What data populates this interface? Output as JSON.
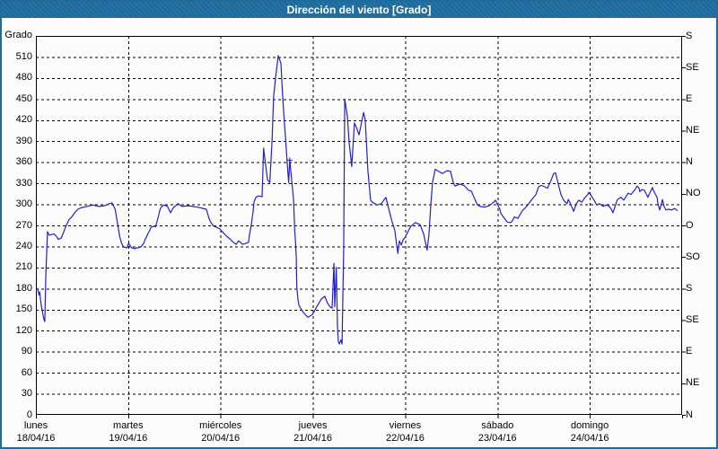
{
  "window": {
    "title": "Dirección del viento [Grado]"
  },
  "colors": {
    "titlebar": "#1e6c9e",
    "window_border": "#1e6c9e",
    "line": "#2222c2",
    "grid": "#000000",
    "axis": "#000000",
    "background": "#fcfcfd",
    "text": "#000000"
  },
  "chart_data": {
    "type": "line",
    "title": "Dirección del viento [Grado]",
    "ylabel_left": "Grado",
    "ylim": [
      0,
      540
    ],
    "xlim_hours": [
      0,
      168
    ],
    "grid": true,
    "legend": "none",
    "y_left_ticks": [
      0,
      30,
      60,
      90,
      120,
      150,
      180,
      210,
      240,
      270,
      300,
      330,
      360,
      390,
      420,
      450,
      480,
      510
    ],
    "y_right_ticks": [
      {
        "value": 540,
        "label": "S"
      },
      {
        "value": 495,
        "label": "SE"
      },
      {
        "value": 450,
        "label": "E"
      },
      {
        "value": 405,
        "label": "NE"
      },
      {
        "value": 360,
        "label": "N"
      },
      {
        "value": 315,
        "label": "NO"
      },
      {
        "value": 270,
        "label": "O"
      },
      {
        "value": 225,
        "label": "SO"
      },
      {
        "value": 180,
        "label": "S"
      },
      {
        "value": 135,
        "label": "SE"
      },
      {
        "value": 90,
        "label": "E"
      },
      {
        "value": 45,
        "label": "NE"
      },
      {
        "value": 0,
        "label": "N"
      }
    ],
    "x_categories": [
      {
        "day": "lunes",
        "date": "18/04/16"
      },
      {
        "day": "martes",
        "date": "19/04/16"
      },
      {
        "day": "miércoles",
        "date": "20/04/16"
      },
      {
        "day": "jueves",
        "date": "21/04/16"
      },
      {
        "day": "viernes",
        "date": "22/04/16"
      },
      {
        "day": "sábado",
        "date": "23/04/16"
      },
      {
        "day": "domingo",
        "date": "24/04/16"
      }
    ],
    "marker_point": [
      66.0,
      363
    ],
    "series": [
      {
        "name": "Dirección del viento",
        "color": "#2222c2",
        "points": [
          [
            0,
            178
          ],
          [
            0.5,
            180
          ],
          [
            0.8,
            171
          ],
          [
            1.0,
            175
          ],
          [
            1.2,
            165
          ],
          [
            1.4,
            156
          ],
          [
            1.6,
            150
          ],
          [
            1.9,
            141
          ],
          [
            2.1,
            136
          ],
          [
            2.3,
            133
          ],
          [
            2.6,
            200
          ],
          [
            3.0,
            261
          ],
          [
            3.5,
            256
          ],
          [
            4.7,
            258
          ],
          [
            5.4,
            254
          ],
          [
            5.8,
            250
          ],
          [
            6.6,
            252
          ],
          [
            7.4,
            263
          ],
          [
            7.8,
            269
          ],
          [
            8.6,
            278
          ],
          [
            9.3,
            282
          ],
          [
            10.1,
            288
          ],
          [
            10.9,
            293
          ],
          [
            11.7,
            295
          ],
          [
            13.2,
            297
          ],
          [
            14.8,
            299
          ],
          [
            16.3,
            297
          ],
          [
            17.9,
            298
          ],
          [
            19.1,
            301
          ],
          [
            19.8,
            302
          ],
          [
            20.6,
            293
          ],
          [
            21.0,
            280
          ],
          [
            21.4,
            267
          ],
          [
            21.8,
            254
          ],
          [
            22.2,
            246
          ],
          [
            22.6,
            241
          ],
          [
            22.9,
            239
          ],
          [
            23.7,
            238
          ],
          [
            24.1,
            245
          ],
          [
            24.5,
            241
          ],
          [
            24.9,
            238
          ],
          [
            25.7,
            237
          ],
          [
            26.4,
            238
          ],
          [
            27.2,
            239
          ],
          [
            28.0,
            244
          ],
          [
            28.4,
            250
          ],
          [
            28.8,
            254
          ],
          [
            29.2,
            259
          ],
          [
            29.6,
            263
          ],
          [
            29.9,
            267
          ],
          [
            30.7,
            269
          ],
          [
            31.1,
            268
          ],
          [
            31.9,
            284
          ],
          [
            32.3,
            293
          ],
          [
            32.7,
            297
          ],
          [
            33.4,
            299
          ],
          [
            34.2,
            297
          ],
          [
            35.0,
            288
          ],
          [
            35.7,
            295
          ],
          [
            36.9,
            301
          ],
          [
            38.0,
            297
          ],
          [
            39.7,
            298
          ],
          [
            42.0,
            296
          ],
          [
            44.3,
            293
          ],
          [
            45.0,
            280
          ],
          [
            45.5,
            274
          ],
          [
            46.2,
            269
          ],
          [
            47.1,
            267
          ],
          [
            47.8,
            265
          ],
          [
            48.3,
            262
          ],
          [
            49.0,
            258
          ],
          [
            49.7,
            254
          ],
          [
            50.6,
            250
          ],
          [
            51.3,
            246
          ],
          [
            52.0,
            243
          ],
          [
            52.7,
            248
          ],
          [
            53.2,
            246
          ],
          [
            53.7,
            243
          ],
          [
            54.4,
            244
          ],
          [
            55.3,
            246
          ],
          [
            55.5,
            256
          ],
          [
            56.0,
            271
          ],
          [
            56.5,
            291
          ],
          [
            56.7,
            303
          ],
          [
            57.2,
            310
          ],
          [
            57.9,
            312
          ],
          [
            58.8,
            311
          ],
          [
            59.2,
            380
          ],
          [
            59.7,
            357
          ],
          [
            60.2,
            335
          ],
          [
            60.8,
            331
          ],
          [
            61.4,
            390
          ],
          [
            61.8,
            454
          ],
          [
            62.3,
            480
          ],
          [
            63.0,
            512
          ],
          [
            63.7,
            501
          ],
          [
            64.2,
            450
          ],
          [
            64.6,
            416
          ],
          [
            64.9,
            395
          ],
          [
            65.3,
            361
          ],
          [
            65.7,
            331
          ],
          [
            66.0,
            363
          ],
          [
            66.4,
            340
          ],
          [
            67.0,
            306
          ],
          [
            67.3,
            262
          ],
          [
            67.5,
            246
          ],
          [
            67.7,
            224
          ],
          [
            67.8,
            184
          ],
          [
            68.1,
            165
          ],
          [
            68.4,
            156
          ],
          [
            69.5,
            146
          ],
          [
            70.7,
            139
          ],
          [
            71.9,
            143
          ],
          [
            72.8,
            152
          ],
          [
            74.2,
            165
          ],
          [
            75.1,
            169
          ],
          [
            75.8,
            159
          ],
          [
            76.5,
            154
          ],
          [
            77.0,
            152
          ],
          [
            77.5,
            216
          ],
          [
            77.7,
            154
          ],
          [
            78.1,
            210
          ],
          [
            78.4,
            127
          ],
          [
            78.6,
            105
          ],
          [
            78.9,
            101
          ],
          [
            79.3,
            107
          ],
          [
            79.6,
            101
          ],
          [
            80.0,
            233
          ],
          [
            80.3,
            450
          ],
          [
            81.0,
            425
          ],
          [
            81.4,
            390
          ],
          [
            82.1,
            354
          ],
          [
            82.8,
            416
          ],
          [
            83.3,
            410
          ],
          [
            84.0,
            399
          ],
          [
            84.5,
            412
          ],
          [
            85.2,
            431
          ],
          [
            85.6,
            421
          ],
          [
            86.3,
            348
          ],
          [
            87.0,
            306
          ],
          [
            87.5,
            303
          ],
          [
            88.7,
            299
          ],
          [
            89.8,
            301
          ],
          [
            91.0,
            310
          ],
          [
            91.7,
            294
          ],
          [
            92.6,
            275
          ],
          [
            93.3,
            263
          ],
          [
            93.8,
            242
          ],
          [
            94.1,
            230
          ],
          [
            94.5,
            248
          ],
          [
            95.0,
            242
          ],
          [
            95.5,
            250
          ],
          [
            95.9,
            252
          ],
          [
            96.8,
            262
          ],
          [
            97.5,
            269
          ],
          [
            98.7,
            274
          ],
          [
            99.9,
            271
          ],
          [
            100.8,
            258
          ],
          [
            101.3,
            245
          ],
          [
            101.7,
            235
          ],
          [
            102.2,
            258
          ],
          [
            102.7,
            301
          ],
          [
            103.1,
            331
          ],
          [
            103.8,
            350
          ],
          [
            105.0,
            346
          ],
          [
            105.7,
            344
          ],
          [
            106.9,
            348
          ],
          [
            107.8,
            347
          ],
          [
            108.5,
            331
          ],
          [
            109.0,
            326
          ],
          [
            110.1,
            329
          ],
          [
            111.3,
            327
          ],
          [
            112.5,
            320
          ],
          [
            113.2,
            319
          ],
          [
            113.9,
            310
          ],
          [
            114.8,
            299
          ],
          [
            115.5,
            297
          ],
          [
            116.7,
            296
          ],
          [
            117.8,
            298
          ],
          [
            119.0,
            303
          ],
          [
            119.5,
            306
          ],
          [
            120.6,
            293
          ],
          [
            120.9,
            287
          ],
          [
            121.8,
            280
          ],
          [
            122.5,
            275
          ],
          [
            123.2,
            274
          ],
          [
            123.7,
            275
          ],
          [
            124.4,
            282
          ],
          [
            125.3,
            280
          ],
          [
            126.5,
            291
          ],
          [
            127.2,
            295
          ],
          [
            127.9,
            299
          ],
          [
            128.8,
            306
          ],
          [
            130.0,
            314
          ],
          [
            130.7,
            325
          ],
          [
            131.4,
            327
          ],
          [
            132.3,
            325
          ],
          [
            133.0,
            323
          ],
          [
            133.7,
            331
          ],
          [
            134.6,
            344
          ],
          [
            135.1,
            345
          ],
          [
            135.8,
            329
          ],
          [
            136.5,
            314
          ],
          [
            137.2,
            306
          ],
          [
            137.7,
            303
          ],
          [
            138.1,
            301
          ],
          [
            138.4,
            307
          ],
          [
            138.8,
            303
          ],
          [
            139.5,
            294
          ],
          [
            139.8,
            290
          ],
          [
            140.5,
            301
          ],
          [
            141.2,
            306
          ],
          [
            141.9,
            303
          ],
          [
            142.8,
            310
          ],
          [
            143.5,
            314
          ],
          [
            143.7,
            317
          ],
          [
            144.2,
            314
          ],
          [
            145.1,
            306
          ],
          [
            145.8,
            299
          ],
          [
            146.5,
            301
          ],
          [
            147.5,
            297
          ],
          [
            148.2,
            299
          ],
          [
            148.9,
            298
          ],
          [
            149.6,
            293
          ],
          [
            150.0,
            288
          ],
          [
            151.2,
            307
          ],
          [
            152.1,
            310
          ],
          [
            152.8,
            306
          ],
          [
            153.3,
            310
          ],
          [
            154.0,
            316
          ],
          [
            154.7,
            314
          ],
          [
            155.6,
            320
          ],
          [
            156.3,
            326
          ],
          [
            156.8,
            323
          ],
          [
            157.0,
            318
          ],
          [
            157.5,
            321
          ],
          [
            158.2,
            320
          ],
          [
            159.1,
            310
          ],
          [
            159.4,
            314
          ],
          [
            160.3,
            324
          ],
          [
            160.5,
            320
          ],
          [
            161.5,
            310
          ],
          [
            161.7,
            301
          ],
          [
            162.2,
            292
          ],
          [
            162.9,
            307
          ],
          [
            163.3,
            297
          ],
          [
            163.8,
            292
          ],
          [
            164.5,
            293
          ],
          [
            165.2,
            292
          ],
          [
            166.1,
            294
          ],
          [
            166.8,
            291
          ]
        ]
      }
    ]
  }
}
